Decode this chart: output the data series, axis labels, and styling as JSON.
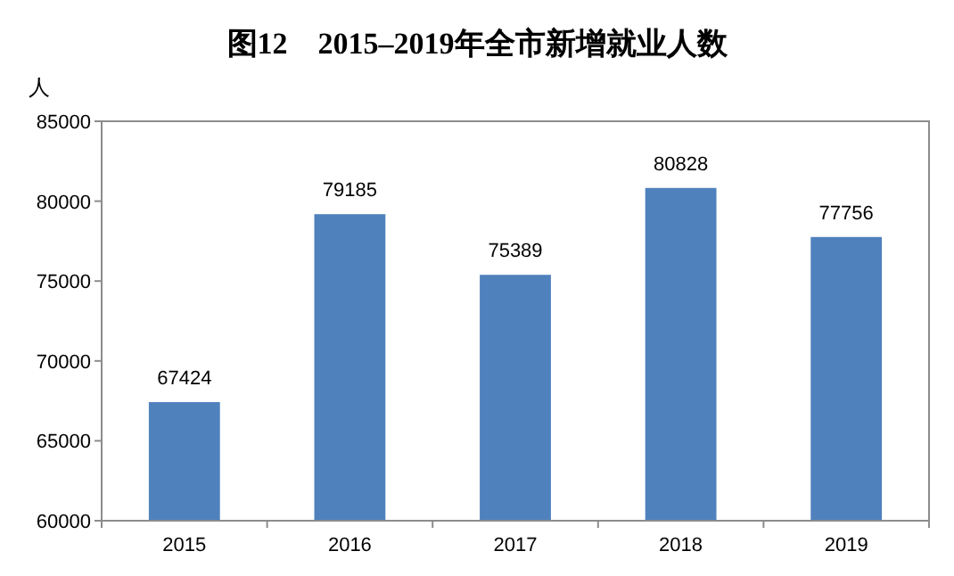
{
  "chart_data": {
    "type": "bar",
    "title": "图12　2015–2019年全市新增就业人数",
    "ylabel": "人",
    "categories": [
      "2015",
      "2016",
      "2017",
      "2018",
      "2019"
    ],
    "values": [
      67424,
      79185,
      75389,
      80828,
      77756
    ],
    "color": "#4f81bd",
    "ylim": [
      60000,
      85000
    ],
    "yticks": [
      60000,
      65000,
      70000,
      75000,
      80000,
      85000
    ],
    "data_labels": true,
    "grid": false
  }
}
